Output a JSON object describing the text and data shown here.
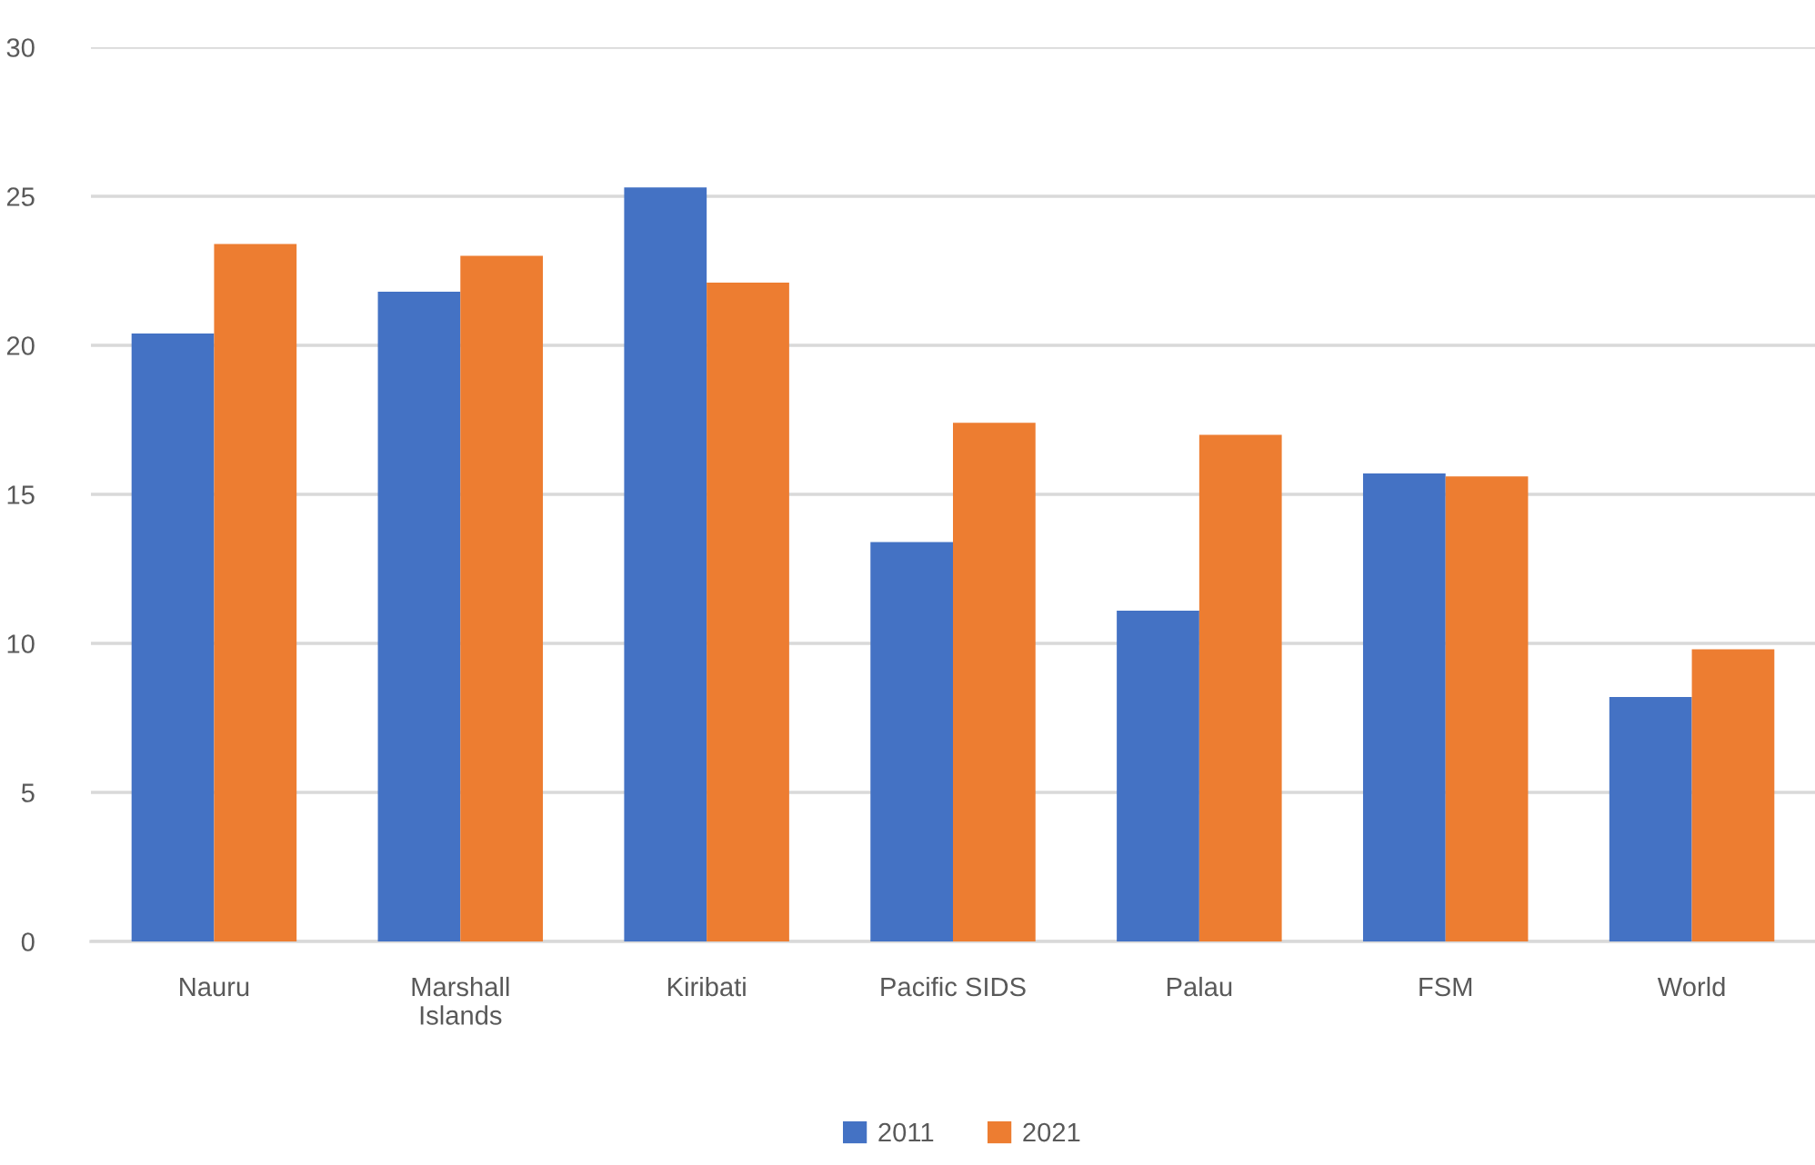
{
  "chart_data": {
    "type": "bar",
    "categories": [
      "Nauru",
      "Marshall\nIslands",
      "Kiribati",
      "Pacific SIDS",
      "Palau",
      "FSM",
      "World"
    ],
    "series": [
      {
        "name": "2011",
        "color": "#4472c4",
        "values": [
          20.4,
          21.8,
          25.3,
          13.4,
          11.1,
          15.7,
          8.2
        ]
      },
      {
        "name": "2021",
        "color": "#ed7d31",
        "values": [
          23.4,
          23.0,
          22.1,
          17.4,
          17.0,
          15.6,
          9.8
        ]
      }
    ],
    "ylim": [
      0,
      30
    ],
    "yticks": [
      0,
      5,
      10,
      15,
      20,
      25,
      30
    ],
    "grid": "y",
    "legend": "bottom"
  }
}
